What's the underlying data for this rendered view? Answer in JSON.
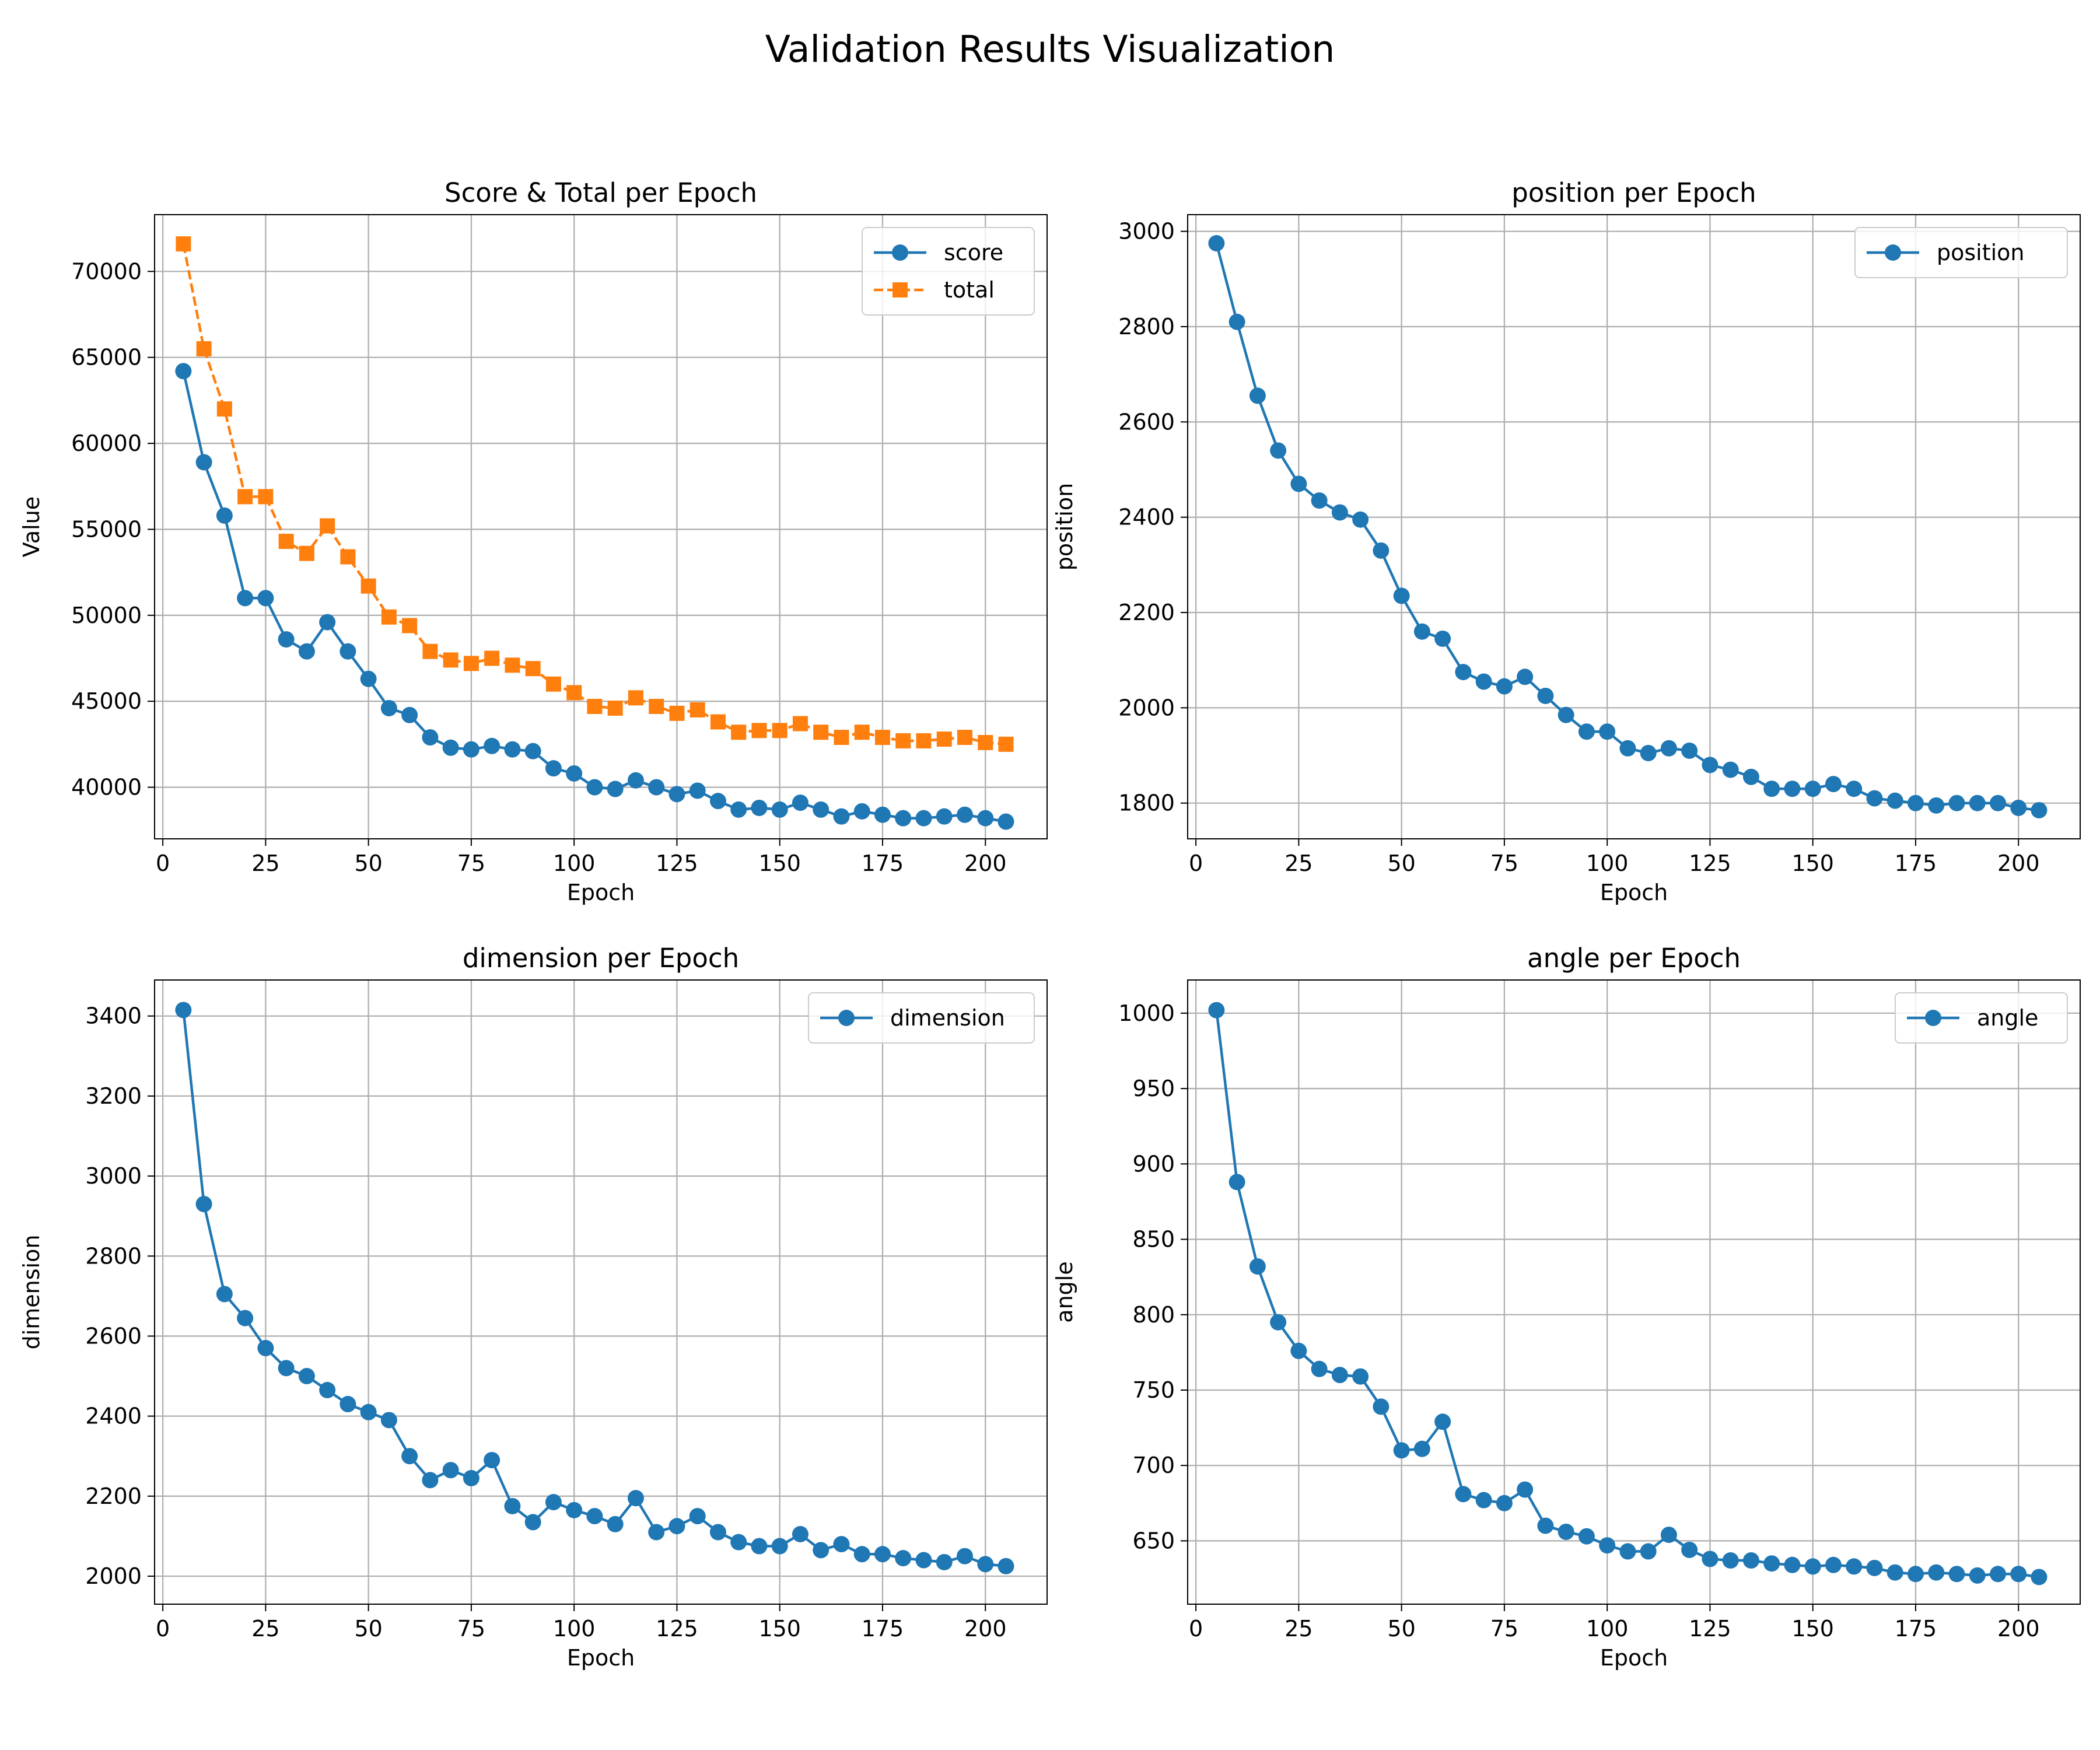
{
  "title": "Validation Results Visualization",
  "chart_data": [
    {
      "type": "line",
      "title": "Score & Total per Epoch",
      "xlabel": "Epoch",
      "ylabel": "Value",
      "xlim": [
        -2,
        215
      ],
      "ylim": [
        37000,
        73300
      ],
      "xticks": [
        0,
        25,
        50,
        75,
        100,
        125,
        150,
        175,
        200
      ],
      "yticks": [
        40000,
        45000,
        50000,
        55000,
        60000,
        65000,
        70000
      ],
      "grid": true,
      "legend": "top-right",
      "x": [
        5,
        10,
        15,
        20,
        25,
        30,
        35,
        40,
        45,
        50,
        55,
        60,
        65,
        70,
        75,
        80,
        85,
        90,
        95,
        100,
        105,
        110,
        115,
        120,
        125,
        130,
        135,
        140,
        145,
        150,
        155,
        160,
        165,
        170,
        175,
        180,
        185,
        190,
        195,
        200,
        205
      ],
      "series": [
        {
          "name": "score",
          "color": "#1f77b4",
          "marker": "circle",
          "dashed": false,
          "values": [
            64200,
            58900,
            55800,
            51000,
            51000,
            48600,
            47900,
            49600,
            47900,
            46300,
            44600,
            44200,
            42900,
            42300,
            42200,
            42400,
            42200,
            42100,
            41100,
            40800,
            40000,
            39900,
            40400,
            40000,
            39600,
            39800,
            39200,
            38700,
            38800,
            38700,
            39100,
            38700,
            38300,
            38600,
            38400,
            38200,
            38200,
            38300,
            38400,
            38200,
            38000
          ]
        },
        {
          "name": "total",
          "color": "#ff7f0e",
          "marker": "square",
          "dashed": true,
          "values": [
            71600,
            65500,
            62000,
            56900,
            56900,
            54300,
            53600,
            55200,
            53400,
            51700,
            49900,
            49400,
            47900,
            47400,
            47200,
            47500,
            47100,
            46900,
            46000,
            45500,
            44700,
            44600,
            45200,
            44700,
            44300,
            44500,
            43800,
            43200,
            43300,
            43300,
            43700,
            43200,
            42900,
            43200,
            42900,
            42700,
            42700,
            42800,
            42900,
            42600,
            42500
          ]
        }
      ]
    },
    {
      "type": "line",
      "title": "position per Epoch",
      "xlabel": "Epoch",
      "ylabel": "position",
      "xlim": [
        -2,
        215
      ],
      "ylim": [
        1725,
        3035
      ],
      "xticks": [
        0,
        25,
        50,
        75,
        100,
        125,
        150,
        175,
        200
      ],
      "yticks": [
        1800,
        2000,
        2200,
        2400,
        2600,
        2800,
        3000
      ],
      "grid": true,
      "legend": "top-right",
      "x": [
        5,
        10,
        15,
        20,
        25,
        30,
        35,
        40,
        45,
        50,
        55,
        60,
        65,
        70,
        75,
        80,
        85,
        90,
        95,
        100,
        105,
        110,
        115,
        120,
        125,
        130,
        135,
        140,
        145,
        150,
        155,
        160,
        165,
        170,
        175,
        180,
        185,
        190,
        195,
        200,
        205
      ],
      "series": [
        {
          "name": "position",
          "color": "#1f77b4",
          "marker": "circle",
          "dashed": false,
          "values": [
            2975,
            2810,
            2655,
            2540,
            2470,
            2435,
            2410,
            2395,
            2330,
            2235,
            2160,
            2145,
            2075,
            2055,
            2045,
            2065,
            2025,
            1985,
            1950,
            1950,
            1915,
            1905,
            1915,
            1910,
            1880,
            1870,
            1855,
            1830,
            1830,
            1830,
            1840,
            1830,
            1810,
            1805,
            1800,
            1795,
            1800,
            1800,
            1800,
            1790,
            1785
          ]
        }
      ]
    },
    {
      "type": "line",
      "title": "dimension per Epoch",
      "xlabel": "Epoch",
      "ylabel": "dimension",
      "xlim": [
        -2,
        215
      ],
      "ylim": [
        1930,
        3490
      ],
      "xticks": [
        0,
        25,
        50,
        75,
        100,
        125,
        150,
        175,
        200
      ],
      "yticks": [
        2000,
        2200,
        2400,
        2600,
        2800,
        3000,
        3200,
        3400
      ],
      "grid": true,
      "legend": "top-right",
      "x": [
        5,
        10,
        15,
        20,
        25,
        30,
        35,
        40,
        45,
        50,
        55,
        60,
        65,
        70,
        75,
        80,
        85,
        90,
        95,
        100,
        105,
        110,
        115,
        120,
        125,
        130,
        135,
        140,
        145,
        150,
        155,
        160,
        165,
        170,
        175,
        180,
        185,
        190,
        195,
        200,
        205
      ],
      "series": [
        {
          "name": "dimension",
          "color": "#1f77b4",
          "marker": "circle",
          "dashed": false,
          "values": [
            3415,
            2930,
            2705,
            2645,
            2570,
            2520,
            2500,
            2465,
            2430,
            2410,
            2390,
            2300,
            2240,
            2265,
            2245,
            2290,
            2175,
            2135,
            2185,
            2165,
            2150,
            2130,
            2195,
            2110,
            2125,
            2150,
            2110,
            2085,
            2075,
            2075,
            2105,
            2065,
            2080,
            2055,
            2055,
            2045,
            2040,
            2035,
            2050,
            2030,
            2025
          ]
        }
      ]
    },
    {
      "type": "line",
      "title": "angle per Epoch",
      "xlabel": "Epoch",
      "ylabel": "angle",
      "xlim": [
        -2,
        215
      ],
      "ylim": [
        608,
        1022
      ],
      "xticks": [
        0,
        25,
        50,
        75,
        100,
        125,
        150,
        175,
        200
      ],
      "yticks": [
        650,
        700,
        750,
        800,
        850,
        900,
        950,
        1000
      ],
      "grid": true,
      "legend": "top-right",
      "x": [
        5,
        10,
        15,
        20,
        25,
        30,
        35,
        40,
        45,
        50,
        55,
        60,
        65,
        70,
        75,
        80,
        85,
        90,
        95,
        100,
        105,
        110,
        115,
        120,
        125,
        130,
        135,
        140,
        145,
        150,
        155,
        160,
        165,
        170,
        175,
        180,
        185,
        190,
        195,
        200,
        205
      ],
      "series": [
        {
          "name": "angle",
          "color": "#1f77b4",
          "marker": "circle",
          "dashed": false,
          "values": [
            1002,
            888,
            832,
            795,
            776,
            764,
            760,
            759,
            739,
            710,
            711,
            729,
            681,
            677,
            675,
            684,
            660,
            656,
            653,
            647,
            643,
            643,
            654,
            644,
            638,
            637,
            637,
            635,
            634,
            633,
            634,
            633,
            632,
            629,
            628,
            629,
            628,
            627,
            628,
            628,
            626
          ]
        }
      ]
    }
  ]
}
